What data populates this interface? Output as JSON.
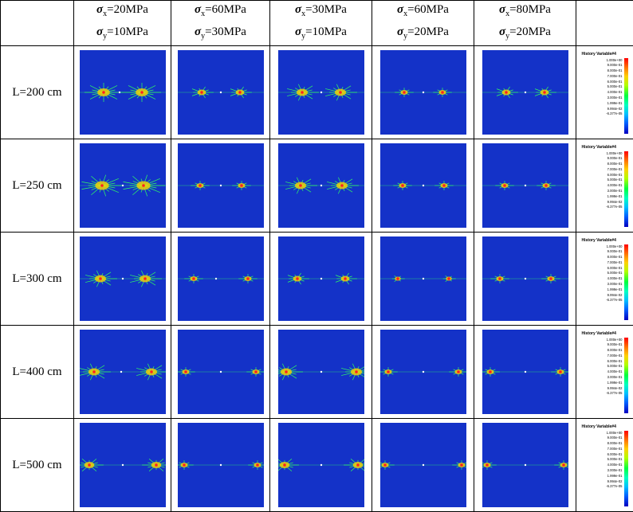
{
  "columns": [
    {
      "sx": "=20MPa",
      "sy": "=10MPa"
    },
    {
      "sx": "=60MPa",
      "sy": "=30MPa"
    },
    {
      "sx": "=30MPa",
      "sy": "=10MPa"
    },
    {
      "sx": "=60MPa",
      "sy": "=20MPa"
    },
    {
      "sx": "=80MPa",
      "sy": "=20MPa"
    }
  ],
  "sigma_symbol": "σ",
  "sub_x": "x",
  "sub_y": "y",
  "rows": [
    "L=200 cm",
    "L=250 cm",
    "L=300 cm",
    "L=400 cm",
    "L=500 cm"
  ],
  "legend": {
    "title": "History Variable#4",
    "ticks": [
      "1.000e+00",
      "9.000e-01",
      "8.000e-01",
      "7.000e-01",
      "6.000e-01",
      "5.000e-01",
      "4.000e-01",
      "3.000e-01",
      "1.999e-01",
      "9.994e-02",
      "-6.377e-05"
    ]
  },
  "colors": {
    "background": "#1432c8",
    "crack": "#30ff60",
    "core": "#ff2020"
  }
}
